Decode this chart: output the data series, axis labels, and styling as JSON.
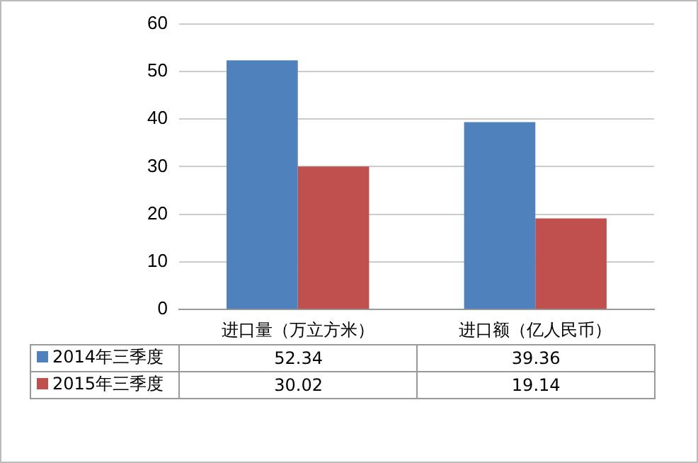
{
  "chart_data": {
    "type": "bar",
    "categories": [
      "进口量（万立方米）",
      "进口额（亿人民币）"
    ],
    "series": [
      {
        "name": "2014年三季度",
        "color": "#4f81bd",
        "values": [
          52.34,
          39.36
        ]
      },
      {
        "name": "2015年三季度",
        "color": "#c0504d",
        "values": [
          30.02,
          19.14
        ]
      }
    ],
    "ylim": [
      0,
      60
    ],
    "yticks": [
      0,
      10,
      20,
      30,
      40,
      50,
      60
    ],
    "grid": "y",
    "legend": "bottom",
    "data_labels": true
  }
}
